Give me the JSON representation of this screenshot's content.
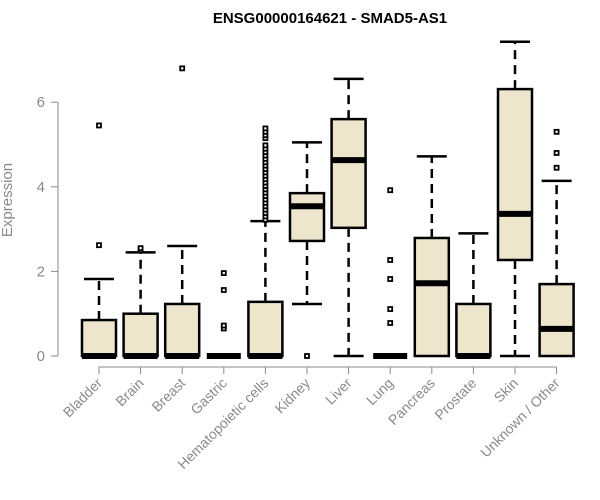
{
  "chart_data": {
    "type": "boxplot",
    "title": "ENSG00000164621 - SMAD5-AS1",
    "xlabel": "",
    "ylabel": "Expression",
    "ylim": [
      0,
      7.5
    ],
    "yticks": [
      0,
      2,
      4,
      6
    ],
    "grid": false,
    "legend": "none",
    "box_fill": "#EDE6CD",
    "categories": [
      "Bladder",
      "Brain",
      "Breast",
      "Gastric",
      "Hematopoietic cells",
      "Kidney",
      "Liver",
      "Lung",
      "Pancreas",
      "Prostate",
      "Skin",
      "Unknown / Other"
    ],
    "series": [
      {
        "name": "Bladder",
        "whisker_low": 0,
        "q1": 0,
        "median": 0,
        "q3": 0.85,
        "whisker_high": 1.82,
        "outliers": [
          2.62,
          5.45
        ]
      },
      {
        "name": "Brain",
        "whisker_low": 0,
        "q1": 0,
        "median": 0,
        "q3": 1.0,
        "whisker_high": 2.45,
        "outliers": [
          2.5,
          2.55
        ]
      },
      {
        "name": "Breast",
        "whisker_low": 0,
        "q1": 0,
        "median": 0,
        "q3": 1.23,
        "whisker_high": 2.6,
        "outliers": [
          6.8
        ]
      },
      {
        "name": "Gastric",
        "whisker_low": 0,
        "q1": 0,
        "median": 0,
        "q3": 0,
        "whisker_high": 0,
        "outliers": [
          0.65,
          0.72,
          1.56,
          1.96
        ]
      },
      {
        "name": "Hematopoietic cells",
        "whisker_low": 0,
        "q1": 0,
        "median": 0,
        "q3": 1.28,
        "whisker_high": 3.19,
        "outliers": [
          3.22,
          3.3,
          3.38,
          3.46,
          3.54,
          3.62,
          3.7,
          3.78,
          3.86,
          3.94,
          4.02,
          4.1,
          4.18,
          4.26,
          4.34,
          4.42,
          4.5,
          4.58,
          4.66,
          4.74,
          4.82,
          4.9,
          4.98,
          5.15,
          5.22,
          5.3,
          5.38
        ]
      },
      {
        "name": "Kidney",
        "whisker_low": 1.23,
        "q1": 2.72,
        "median": 3.54,
        "q3": 3.85,
        "whisker_high": 5.05,
        "outliers": [
          0
        ]
      },
      {
        "name": "Liver",
        "whisker_low": 0,
        "q1": 3.03,
        "median": 4.63,
        "q3": 5.6,
        "whisker_high": 6.55,
        "outliers": []
      },
      {
        "name": "Lung",
        "whisker_low": 0,
        "q1": 0,
        "median": 0,
        "q3": 0,
        "whisker_high": 0,
        "outliers": [
          0.78,
          1.11,
          1.82,
          2.27,
          3.92
        ]
      },
      {
        "name": "Pancreas",
        "whisker_low": 0,
        "q1": 0,
        "median": 1.72,
        "q3": 2.79,
        "whisker_high": 4.72,
        "outliers": []
      },
      {
        "name": "Prostate",
        "whisker_low": 0,
        "q1": 0,
        "median": 0,
        "q3": 1.23,
        "whisker_high": 2.9,
        "outliers": []
      },
      {
        "name": "Skin",
        "whisker_low": 0,
        "q1": 2.27,
        "median": 3.36,
        "q3": 6.31,
        "whisker_high": 7.43,
        "outliers": []
      },
      {
        "name": "Unknown / Other",
        "whisker_low": 0,
        "q1": 0,
        "median": 0.64,
        "q3": 1.7,
        "whisker_high": 4.14,
        "outliers": [
          4.45,
          4.8,
          5.3
        ]
      }
    ]
  }
}
